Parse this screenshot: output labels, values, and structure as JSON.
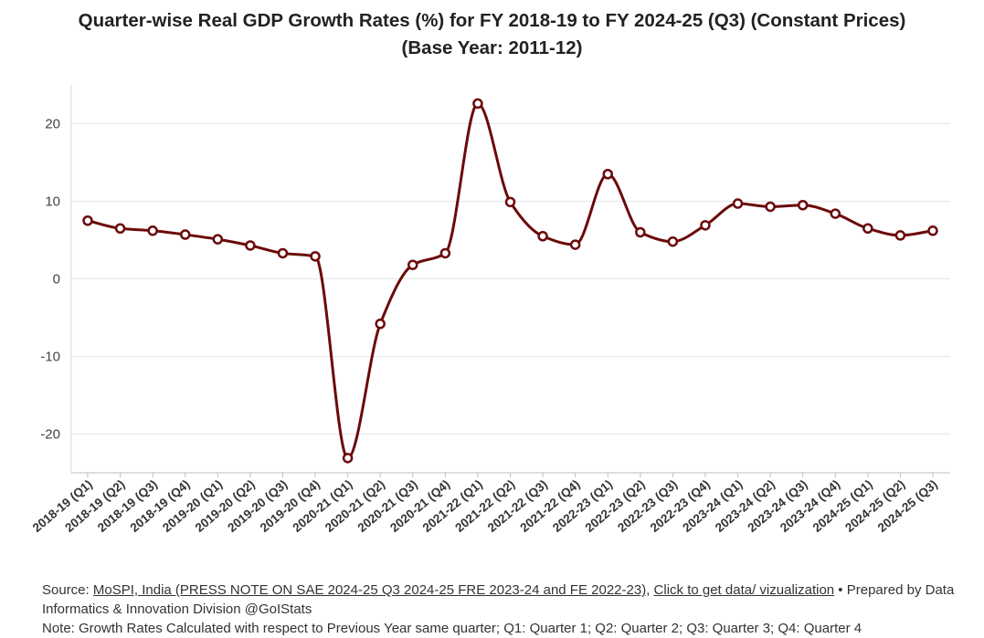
{
  "chart_data": {
    "type": "line",
    "title": "Quarter-wise Real GDP Growth Rates (%) for FY 2018-19 to FY 2024-25 (Q3) (Constant Prices)",
    "subtitle": "(Base Year: 2011-12)",
    "xlabel": "",
    "ylabel": "",
    "ylim": [
      -25,
      25
    ],
    "yticks": [
      20,
      10,
      0,
      -10,
      -20
    ],
    "grid": true,
    "line_color": "#6b0a0a",
    "categories": [
      "2018-19 (Q1)",
      "2018-19 (Q2)",
      "2018-19 (Q3)",
      "2018-19 (Q4)",
      "2019-20 (Q1)",
      "2019-20 (Q2)",
      "2019-20 (Q3)",
      "2019-20 (Q4)",
      "2020-21 (Q1)",
      "2020-21 (Q2)",
      "2020-21 (Q3)",
      "2020-21 (Q4)",
      "2021-22 (Q1)",
      "2021-22 (Q2)",
      "2021-22 (Q3)",
      "2021-22 (Q4)",
      "2022-23 (Q1)",
      "2022-23 (Q2)",
      "2022-23 (Q3)",
      "2022-23 (Q4)",
      "2023-24 (Q1)",
      "2023-24 (Q2)",
      "2023-24 (Q3)",
      "2023-24 (Q4)",
      "2024-25 (Q1)",
      "2024-25 (Q2)",
      "2024-25 (Q3)"
    ],
    "series": [
      {
        "name": "Real GDP Growth Rate (%)",
        "values": [
          7.5,
          6.5,
          6.2,
          5.7,
          5.1,
          4.3,
          3.3,
          2.9,
          -23.1,
          -5.8,
          1.8,
          3.3,
          22.6,
          9.9,
          5.5,
          4.4,
          13.5,
          6.0,
          4.8,
          6.9,
          9.7,
          9.3,
          9.5,
          8.4,
          6.5,
          5.6,
          6.2
        ]
      }
    ]
  },
  "footer": {
    "source_prefix": "Source: ",
    "source_link": "MoSPI, India (PRESS NOTE ON SAE 2024-25 Q3 2024-25 FRE 2023-24 and FE 2022-23)",
    "source_sep": ", ",
    "data_link": "Click to get data/ vizualization",
    "prepared_by_1": " • Prepared by Data",
    "prepared_by_2": "Informatics & Innovation Division @GoIStats",
    "note": "Note: Growth Rates Calculated with respect to Previous Year same quarter; Q1: Quarter 1; Q2: Quarter 2; Q3: Quarter 3; Q4: Quarter 4"
  }
}
